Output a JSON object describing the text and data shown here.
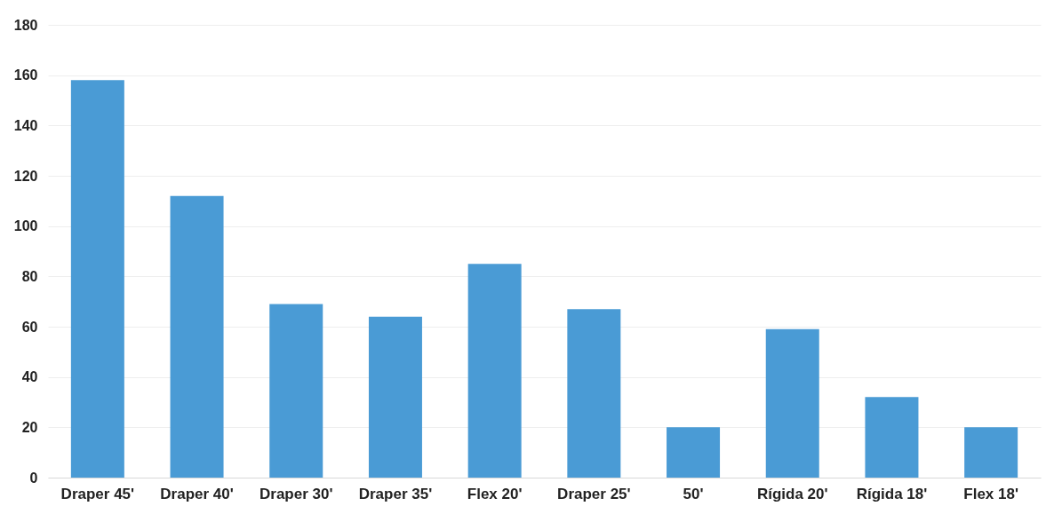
{
  "chart_data": {
    "type": "bar",
    "categories": [
      "Draper 45'",
      "Draper 40'",
      "Draper 30'",
      "Draper 35'",
      "Flex 20'",
      "Draper 25'",
      "50'",
      "Rígida 20'",
      "Rígida 18'",
      "Flex 18'"
    ],
    "values": [
      158,
      112,
      69,
      64,
      85,
      67,
      20,
      59,
      32,
      20
    ],
    "color": "#4a9bd5",
    "ylim": [
      0,
      180
    ],
    "yticks": [
      0,
      20,
      40,
      60,
      80,
      100,
      120,
      140,
      160,
      180
    ],
    "grid": "y"
  }
}
